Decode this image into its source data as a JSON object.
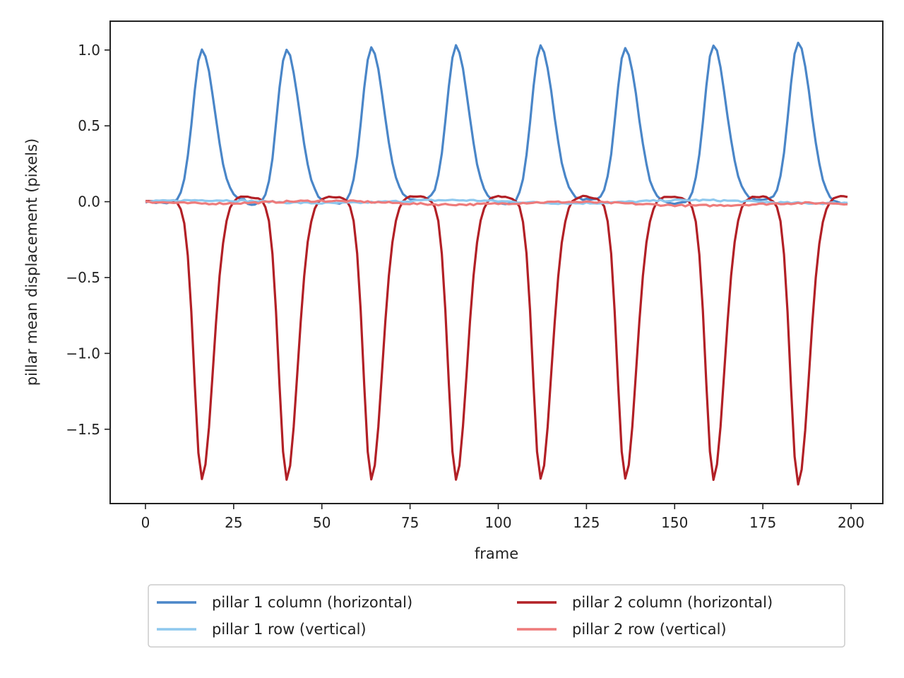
{
  "chart_data": {
    "type": "line",
    "title": "",
    "xlabel": "frame",
    "ylabel": "pillar mean displacement (pixels)",
    "xlim": [
      -10,
      209
    ],
    "ylim": [
      -1.99,
      1.19
    ],
    "xticks": [
      0,
      25,
      50,
      75,
      100,
      125,
      150,
      175,
      200
    ],
    "yticks": [
      1.0,
      0.5,
      0.0,
      -0.5,
      -1.0,
      -1.5
    ],
    "xtick_labels": [
      "0",
      "25",
      "50",
      "75",
      "100",
      "125",
      "150",
      "175",
      "200"
    ],
    "ytick_labels": [
      "1.0",
      "0.5",
      "0.0",
      "−0.5",
      "−1.0",
      "−1.5"
    ],
    "grid": false,
    "legend_placement": "below plot, two columns",
    "x_range": [
      0,
      199
    ],
    "peak_frames": [
      16,
      40,
      64,
      88,
      112,
      136,
      161,
      185
    ],
    "series": [
      {
        "name": "pillar 1 column (horizontal)",
        "color": "#4a86c8",
        "shape": "positive-peaks",
        "peak_values": [
          1.01,
          0.99,
          1.02,
          1.02,
          1.03,
          1.01,
          1.03,
          1.05
        ],
        "baseline": 0.0
      },
      {
        "name": "pillar 1 row (vertical)",
        "color": "#8ec8ee",
        "shape": "flat",
        "baseline": 0.01
      },
      {
        "name": "pillar 2 column (horizontal)",
        "color": "#b22026",
        "shape": "negative-peaks",
        "peak_values": [
          -1.83,
          -1.83,
          -1.83,
          -1.83,
          -1.83,
          -1.83,
          -1.83,
          -1.86
        ],
        "baseline": 0.03
      },
      {
        "name": "pillar 2 row (vertical)",
        "color": "#ee7b7b",
        "shape": "flat",
        "baseline": -0.01
      }
    ]
  }
}
